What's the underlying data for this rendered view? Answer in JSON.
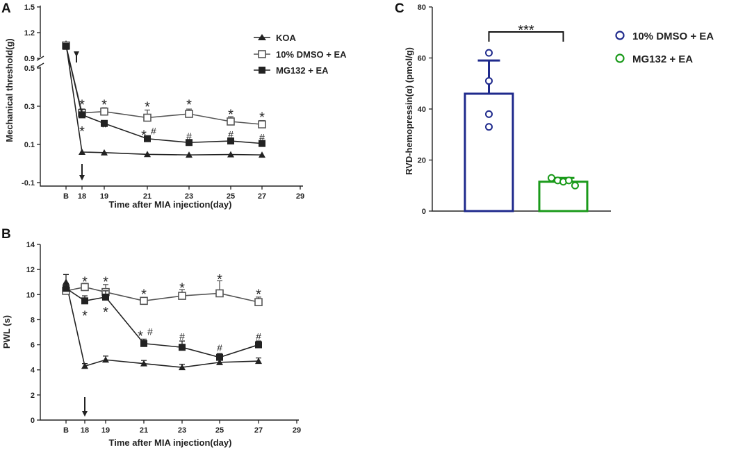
{
  "chart_data": [
    {
      "panel": "A",
      "type": "line",
      "xlabel": "Time after MIA injection(day)",
      "ylabel": "Mechanical threshold(g)",
      "x_ticks": [
        "B",
        "18",
        "19",
        "21",
        "23",
        "25",
        "27",
        "29"
      ],
      "y_ticks_lower": [
        "-0.1",
        "0.1",
        "0.3",
        "0.5"
      ],
      "y_ticks_upper": [
        "0.9",
        "1.2",
        "1.5"
      ],
      "ylim_lower": [
        -0.1,
        0.5
      ],
      "ylim_upper": [
        0.9,
        1.5
      ],
      "x": [
        17,
        18,
        19,
        21,
        23,
        25,
        27
      ],
      "series": [
        {
          "name": "KOA",
          "marker": "triangle",
          "values": [
            1.07,
            0.06,
            0.057,
            0.048,
            0.045,
            0.047,
            0.045
          ],
          "errors": [
            0,
            0,
            0,
            0,
            0,
            0,
            0
          ]
        },
        {
          "name": "10% DMSO + EA",
          "marker": "open-square",
          "values": [
            1.05,
            0.265,
            0.272,
            0.24,
            0.26,
            0.22,
            0.205
          ],
          "errors": [
            0.02,
            0.02,
            0.02,
            0.04,
            0.025,
            0.025,
            0.02
          ]
        },
        {
          "name": "MG132 + EA",
          "marker": "filled-square",
          "values": [
            1.04,
            0.255,
            0.21,
            0.13,
            0.11,
            0.118,
            0.105
          ],
          "errors": [
            0.02,
            0.03,
            0.015,
            0.01,
            0.01,
            0.012,
            0.01
          ]
        }
      ],
      "annotations": [
        {
          "text": "*",
          "x": 18,
          "value": 0.32
        },
        {
          "text": "*",
          "x": 18,
          "value": 0.18
        },
        {
          "text": "*",
          "x": 19,
          "value": 0.32
        },
        {
          "text": "*",
          "x": 19,
          "value": 0.2
        },
        {
          "text": "*",
          "x": 21,
          "value": 0.31
        },
        {
          "text": "*#",
          "x": 21,
          "value": 0.16
        },
        {
          "text": "*",
          "x": 23,
          "value": 0.32
        },
        {
          "text": "#",
          "x": 23,
          "value": 0.14
        },
        {
          "text": "*",
          "x": 25,
          "value": 0.27
        },
        {
          "text": "#",
          "x": 25,
          "value": 0.15
        },
        {
          "text": "*",
          "x": 27,
          "value": 0.255
        },
        {
          "text": "#",
          "x": 27,
          "value": 0.135
        }
      ],
      "arrow_at_x": 18
    },
    {
      "panel": "B",
      "type": "line",
      "xlabel": "Time after MIA injection(day)",
      "ylabel": "PWL (s)",
      "x_ticks": [
        "B",
        "18",
        "19",
        "21",
        "23",
        "25",
        "27",
        "29"
      ],
      "y_ticks": [
        "0",
        "2",
        "4",
        "6",
        "8",
        "10",
        "12",
        "14"
      ],
      "ylim": [
        0,
        14
      ],
      "x": [
        17,
        18,
        19,
        21,
        23,
        25,
        27
      ],
      "series": [
        {
          "name": "KOA",
          "marker": "triangle",
          "values": [
            11.0,
            4.3,
            4.8,
            4.5,
            4.2,
            4.6,
            4.7
          ],
          "errors": [
            0.6,
            0.2,
            0.3,
            0.25,
            0.25,
            0.2,
            0.25
          ]
        },
        {
          "name": "10% DMSO + EA",
          "marker": "open-square",
          "values": [
            10.3,
            10.6,
            10.2,
            9.5,
            9.9,
            10.1,
            9.4
          ],
          "errors": [
            0.25,
            0.3,
            0.6,
            0.2,
            0.5,
            1.0,
            0.4
          ]
        },
        {
          "name": "MG132 + EA",
          "marker": "filled-square",
          "values": [
            10.5,
            9.5,
            9.8,
            6.1,
            5.8,
            5.0,
            6.0
          ],
          "errors": [
            0.4,
            0.4,
            0.5,
            0.35,
            0.5,
            0.3,
            0.3
          ]
        }
      ],
      "annotations": [
        {
          "text": "*",
          "x": 18,
          "value": 11.2
        },
        {
          "text": "*",
          "x": 18,
          "value": 8.5
        },
        {
          "text": "*",
          "x": 19,
          "value": 11.2
        },
        {
          "text": "*",
          "x": 19,
          "value": 8.8
        },
        {
          "text": "*",
          "x": 21,
          "value": 10.2
        },
        {
          "text": "*#",
          "x": 21,
          "value": 6.9
        },
        {
          "text": "*",
          "x": 23,
          "value": 10.7
        },
        {
          "text": "#",
          "x": 23,
          "value": 6.6
        },
        {
          "text": "*",
          "x": 25,
          "value": 11.4
        },
        {
          "text": "#",
          "x": 25,
          "value": 5.7
        },
        {
          "text": "*",
          "x": 27,
          "value": 10.2
        },
        {
          "text": "#",
          "x": 27,
          "value": 6.6
        }
      ],
      "arrow_at_x": 18
    },
    {
      "panel": "C",
      "type": "bar",
      "ylabel": "RVD-hemopressin(α) (pmol/g)",
      "y_ticks": [
        "0",
        "20",
        "40",
        "60",
        "80"
      ],
      "ylim": [
        0,
        80
      ],
      "categories": [
        "10% DMSO + EA",
        "MG132 + EA"
      ],
      "values": [
        46,
        11.5
      ],
      "errors": [
        13,
        1.5
      ],
      "points": [
        [
          62,
          51,
          38,
          33
        ],
        [
          13,
          12,
          11.5,
          12,
          10
        ]
      ],
      "significance": "***"
    }
  ],
  "legend": {
    "koa": "KOA",
    "dmso": "10% DMSO + EA",
    "mg132": "MG132 + EA"
  },
  "legend_c": {
    "dmso": "10% DMSO + EA",
    "mg132": "MG132 + EA"
  },
  "colors": {
    "series_dark": "#222222",
    "series_grey": "#555555",
    "bar_dmso": "#1f2a8c",
    "bar_mg132": "#1a9a1a"
  }
}
